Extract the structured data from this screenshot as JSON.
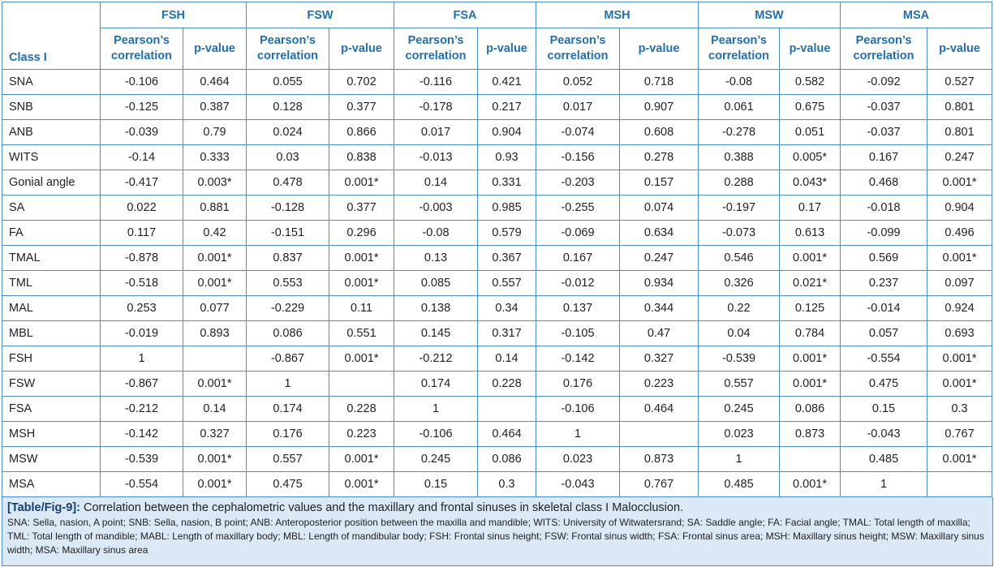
{
  "table": {
    "corner": "Class I",
    "groups": [
      "FSH",
      "FSW",
      "FSA",
      "MSH",
      "MSW",
      "MSA"
    ],
    "subheaders": [
      "Pearson’s correlation",
      "p-value",
      "Pearson’s correlation",
      "p-value",
      "Pearson’s correlation",
      "p-value",
      "Pearson’s correlation",
      "p-value",
      "Pearson’s correlation",
      "p-value",
      "Pearson’s correlation",
      "p-value"
    ],
    "rows": [
      [
        "SNA",
        "-0.106",
        "0.464",
        "0.055",
        "0.702",
        "-0.116",
        "0.421",
        "0.052",
        "0.718",
        "-0.08",
        "0.582",
        "-0.092",
        "0.527"
      ],
      [
        "SNB",
        "-0.125",
        "0.387",
        "0.128",
        "0.377",
        "-0.178",
        "0.217",
        "0.017",
        "0.907",
        "0.061",
        "0.675",
        "-0.037",
        "0.801"
      ],
      [
        "ANB",
        "-0.039",
        "0.79",
        "0.024",
        "0.866",
        "0.017",
        "0.904",
        "-0.074",
        "0.608",
        "-0.278",
        "0.051",
        "-0.037",
        "0.801"
      ],
      [
        "WITS",
        "-0.14",
        "0.333",
        "0.03",
        "0.838",
        "-0.013",
        "0.93",
        "-0.156",
        "0.278",
        "0.388",
        "0.005*",
        "0.167",
        "0.247"
      ],
      [
        "Gonial angle",
        "-0.417",
        "0.003*",
        "0.478",
        "0.001*",
        "0.14",
        "0.331",
        "-0.203",
        "0.157",
        "0.288",
        "0.043*",
        "0.468",
        "0.001*"
      ],
      [
        "SA",
        "0.022",
        "0.881",
        "-0.128",
        "0.377",
        "-0.003",
        "0.985",
        "-0.255",
        "0.074",
        "-0.197",
        "0.17",
        "-0.018",
        "0.904"
      ],
      [
        "FA",
        "0.117",
        "0.42",
        "-0.151",
        "0.296",
        "-0.08",
        "0.579",
        "-0.069",
        "0.634",
        "-0.073",
        "0.613",
        "-0.099",
        "0.496"
      ],
      [
        "TMAL",
        "-0.878",
        "0.001*",
        "0.837",
        "0.001*",
        "0.13",
        "0.367",
        "0.167",
        "0.247",
        "0.546",
        "0.001*",
        "0.569",
        "0.001*"
      ],
      [
        "TML",
        "-0.518",
        "0.001*",
        "0.553",
        "0.001*",
        "0.085",
        "0.557",
        "-0.012",
        "0.934",
        "0.326",
        "0.021*",
        "0.237",
        "0.097"
      ],
      [
        "MAL",
        "0.253",
        "0.077",
        "-0.229",
        "0.11",
        "0.138",
        "0.34",
        "0.137",
        "0.344",
        "0.22",
        "0.125",
        "-0.014",
        "0.924"
      ],
      [
        "MBL",
        "-0.019",
        "0.893",
        "0.086",
        "0.551",
        "0.145",
        "0.317",
        "-0.105",
        "0.47",
        "0.04",
        "0.784",
        "0.057",
        "0.693"
      ],
      [
        "FSH",
        "1",
        null,
        "-0.867",
        "0.001*",
        "-0.212",
        "0.14",
        "-0.142",
        "0.327",
        "-0.539",
        "0.001*",
        "-0.554",
        "0.001*"
      ],
      [
        "FSW",
        "-0.867",
        "0.001*",
        "1",
        null,
        "0.174",
        "0.228",
        "0.176",
        "0.223",
        "0.557",
        "0.001*",
        "0.475",
        "0.001*"
      ],
      [
        "FSA",
        "-0.212",
        "0.14",
        "0.174",
        "0.228",
        "1",
        null,
        "-0.106",
        "0.464",
        "0.245",
        "0.086",
        "0.15",
        "0.3"
      ],
      [
        "MSH",
        "-0.142",
        "0.327",
        "0.176",
        "0.223",
        "-0.106",
        "0.464",
        "1",
        null,
        "0.023",
        "0.873",
        "-0.043",
        "0.767"
      ],
      [
        "MSW",
        "-0.539",
        "0.001*",
        "0.557",
        "0.001*",
        "0.245",
        "0.086",
        "0.023",
        "0.873",
        "1",
        null,
        "0.485",
        "0.001*"
      ],
      [
        "MSA",
        "-0.554",
        "0.001*",
        "0.475",
        "0.001*",
        "0.15",
        "0.3",
        "-0.043",
        "0.767",
        "0.485",
        "0.001*",
        "1",
        null
      ]
    ]
  },
  "caption": {
    "label": "[Table/Fig-9]:",
    "text": "Correlation between the cephalometric values and the maxillary and frontal sinuses in skeletal class I Malocclusion.",
    "footnote": "SNA: Sella, nasion, A point; SNB: Sella, nasion, B point; ANB: Anteroposterior position between the maxilla and mandible; WITS: University of Witwatersrand; SA: Saddle angle; FA: Facial angle; TMAL: Total length of maxilla; TML: Total length of mandible; MABL: Length of maxillary body; MBL: Length of mandibular body; FSH: Frontal sinus height; FSW: Frontal sinus width; FSA: Frontal sinus area; MSH: Maxillary sinus height; MSW: Maxillary sinus width; MSA: Maxillary sinus area"
  }
}
